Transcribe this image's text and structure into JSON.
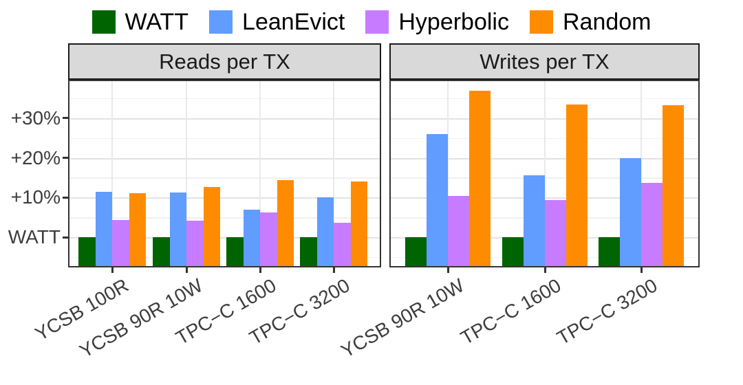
{
  "legend": {
    "items": [
      {
        "label": "WATT",
        "color": "#006400"
      },
      {
        "label": "LeanEvict",
        "color": "#619CFF"
      },
      {
        "label": "Hyperbolic",
        "color": "#C77CFF"
      },
      {
        "label": "Random",
        "color": "#FF8C00"
      }
    ]
  },
  "chart_data": {
    "type": "bar",
    "legend_position": "top",
    "grid": true,
    "baseline_label": "WATT",
    "y_axis": {
      "tick_labels": [
        "WATT",
        "+10%",
        "+20%",
        "+30%"
      ],
      "tick_values": [
        0,
        10,
        20,
        30
      ],
      "minor_tick_step": 5,
      "ylim": [
        -7.5,
        39.3
      ]
    },
    "panels": [
      {
        "title": "Reads per TX",
        "categories": [
          "YCSB 100R",
          "YCSB 90R 10W",
          "TPC−C 1600",
          "TPC−C 3200"
        ],
        "series": [
          {
            "name": "WATT",
            "color": "#006400",
            "values": [
              0,
              0,
              0,
              0
            ]
          },
          {
            "name": "LeanEvict",
            "color": "#619CFF",
            "values": [
              11.4,
              11.3,
              6.9,
              10.0
            ]
          },
          {
            "name": "Hyperbolic",
            "color": "#C77CFF",
            "values": [
              4.3,
              4.2,
              6.2,
              3.6
            ]
          },
          {
            "name": "Random",
            "color": "#FF8C00",
            "values": [
              11.1,
              12.7,
              14.3,
              14.0
            ]
          }
        ]
      },
      {
        "title": "Writes per TX",
        "categories": [
          "YCSB 90R 10W",
          "TPC−C 1600",
          "TPC−C 3200"
        ],
        "series": [
          {
            "name": "WATT",
            "color": "#006400",
            "values": [
              0,
              0,
              0
            ]
          },
          {
            "name": "LeanEvict",
            "color": "#619CFF",
            "values": [
              26.0,
              15.5,
              20.0
            ]
          },
          {
            "name": "Hyperbolic",
            "color": "#C77CFF",
            "values": [
              10.4,
              9.4,
              13.7
            ]
          },
          {
            "name": "Random",
            "color": "#FF8C00",
            "values": [
              36.8,
              33.5,
              33.3
            ]
          }
        ]
      }
    ]
  }
}
